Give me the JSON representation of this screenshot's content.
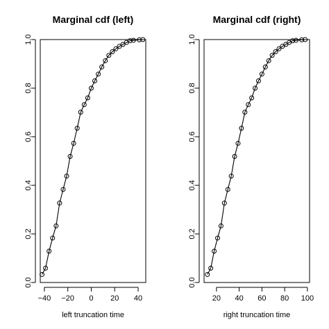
{
  "chart_data": [
    {
      "type": "line",
      "title": "Marginal cdf (left)",
      "xlabel": "left truncation time",
      "ylabel": "",
      "xlim": [
        -43.5,
        46.5
      ],
      "ylim": [
        0.0,
        1.0
      ],
      "xticks": [
        -40,
        -20,
        0,
        20,
        40
      ],
      "yticks": [
        0.0,
        0.2,
        0.4,
        0.6,
        0.8,
        1.0
      ],
      "xtick_labels": [
        "−40",
        "−20",
        "0",
        "20",
        "40"
      ],
      "ytick_labels": [
        "0.0",
        "0.2",
        "0.4",
        "0.6",
        "0.8",
        "1.0"
      ],
      "grid": false,
      "series": [
        {
          "markers": "open-circle",
          "x": [
            -42,
            -39,
            -36,
            -33,
            -30,
            -27,
            -24,
            -21,
            -18,
            -15,
            -12,
            -9,
            -6,
            -3,
            0,
            3,
            6,
            9,
            12,
            15,
            18,
            21,
            24,
            27,
            30,
            33,
            36,
            41,
            44
          ],
          "y": [
            0.033,
            0.059,
            0.129,
            0.183,
            0.233,
            0.327,
            0.383,
            0.438,
            0.519,
            0.573,
            0.635,
            0.701,
            0.732,
            0.76,
            0.8,
            0.83,
            0.858,
            0.887,
            0.913,
            0.935,
            0.95,
            0.962,
            0.972,
            0.98,
            0.988,
            0.995,
            0.997,
            0.999,
            1.0
          ]
        }
      ]
    },
    {
      "type": "line",
      "title": "Marginal cdf (right)",
      "xlabel": "right truncation time",
      "ylabel": "",
      "xlim": [
        9.1,
        101.9
      ],
      "ylim": [
        0.0,
        1.0
      ],
      "xticks": [
        20,
        40,
        60,
        80,
        100
      ],
      "yticks": [
        0.0,
        0.2,
        0.4,
        0.6,
        0.8,
        1.0
      ],
      "xtick_labels": [
        "20",
        "40",
        "60",
        "80",
        "100"
      ],
      "ytick_labels": [
        "0.0",
        "0.2",
        "0.4",
        "0.6",
        "0.8",
        "1.0"
      ],
      "grid": false,
      "series": [
        {
          "markers": "open-circle",
          "x": [
            12,
            15,
            18,
            21,
            24,
            27,
            30,
            33,
            36,
            39,
            42,
            45,
            48,
            51,
            54,
            57,
            60,
            63,
            66,
            69,
            72,
            75,
            78,
            81,
            84,
            87,
            90,
            95,
            98
          ],
          "y": [
            0.033,
            0.059,
            0.129,
            0.183,
            0.233,
            0.327,
            0.383,
            0.438,
            0.519,
            0.573,
            0.635,
            0.701,
            0.732,
            0.76,
            0.8,
            0.83,
            0.858,
            0.887,
            0.913,
            0.935,
            0.95,
            0.962,
            0.972,
            0.98,
            0.988,
            0.995,
            0.997,
            0.999,
            1.0
          ]
        }
      ]
    }
  ]
}
